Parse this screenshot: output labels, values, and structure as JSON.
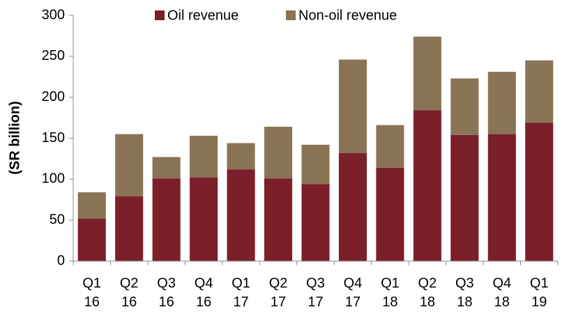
{
  "chart_data": {
    "type": "stacked_bar",
    "y_label": "(SR billion)",
    "categories": [
      [
        "Q1",
        "16"
      ],
      [
        "Q2",
        "16"
      ],
      [
        "Q3",
        "16"
      ],
      [
        "Q4",
        "16"
      ],
      [
        "Q1",
        "17"
      ],
      [
        "Q2",
        "17"
      ],
      [
        "Q3",
        "17"
      ],
      [
        "Q4",
        "17"
      ],
      [
        "Q1",
        "18"
      ],
      [
        "Q2",
        "18"
      ],
      [
        "Q3",
        "18"
      ],
      [
        "Q4",
        "18"
      ],
      [
        "Q1",
        "19"
      ]
    ],
    "series": [
      {
        "name": "Oil revenue",
        "color": "#7b1f2b",
        "values": [
          52,
          79,
          101,
          102,
          112,
          101,
          94,
          132,
          114,
          184,
          154,
          155,
          169
        ]
      },
      {
        "name": "Non-oil revenue",
        "color": "#8b7355",
        "values": [
          32,
          76,
          26,
          51,
          32,
          63,
          48,
          114,
          52,
          90,
          69,
          76,
          76
        ]
      }
    ],
    "ylim": [
      0,
      300
    ],
    "yticks": [
      0,
      50,
      100,
      150,
      200,
      250,
      300
    ],
    "legend": "top"
  }
}
